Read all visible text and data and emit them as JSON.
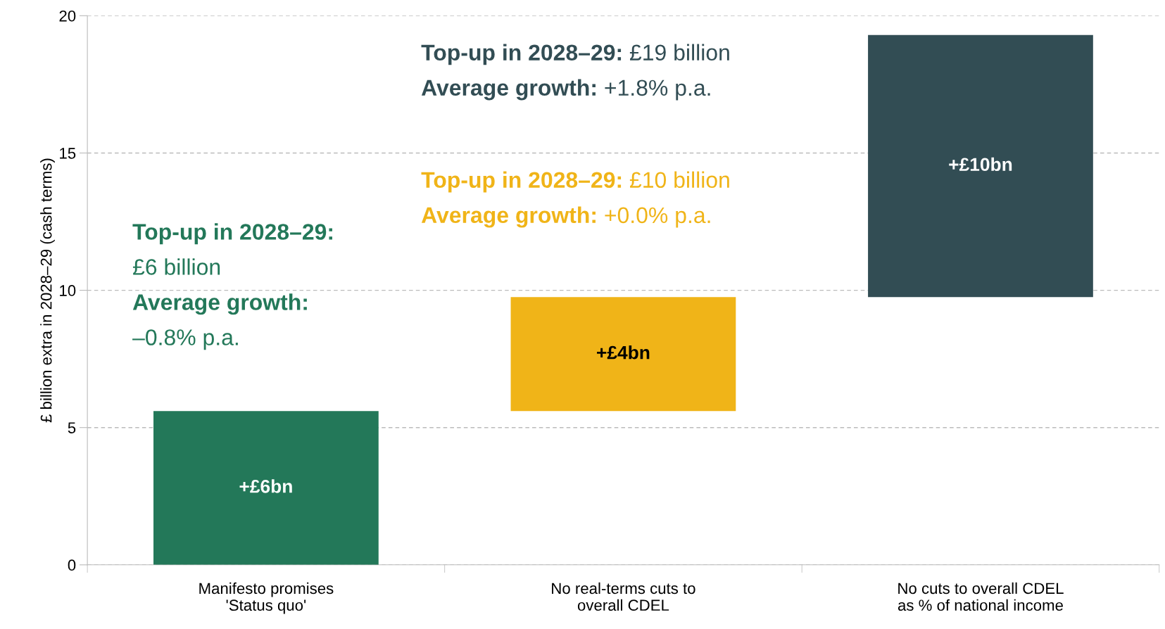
{
  "chart_data": {
    "type": "bar",
    "categories": [
      "Manifesto promises\n'Status quo'",
      "No real-terms cuts to\noverall CDEL",
      "No cuts to overall CDEL\nas % of national income"
    ],
    "base": [
      0,
      5.6,
      9.75
    ],
    "values": [
      5.6,
      4.15,
      9.55
    ],
    "colors": [
      "#237859",
      "#f0b418",
      "#324d54"
    ],
    "value_labels": [
      "+£6bn",
      "+£4bn",
      "+£10bn"
    ],
    "ylabel": "£ billion extra in 2028–29 (cash terms)",
    "ylim": [
      0,
      20
    ],
    "yticks": [
      0,
      5,
      10,
      15,
      20
    ],
    "grid": "y",
    "annotations": [
      "Top-up in 2028–29:\n£6 billion\nAverage growth:\n–0.8% p.a.",
      "Top-up in 2028–29: £10 billion\nAverage growth: +0.0% p.a.",
      "Top-up in 2028–29: £19 billion\nAverage growth: +1.8% p.a."
    ]
  }
}
